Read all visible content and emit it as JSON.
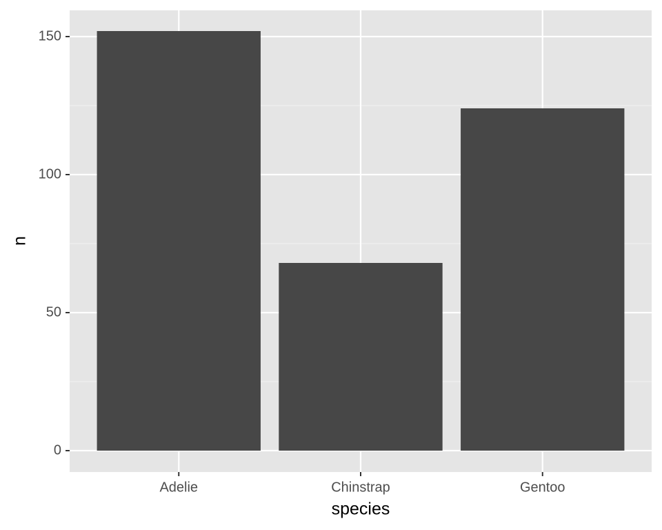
{
  "chart_data": {
    "type": "bar",
    "x_label": "species",
    "y_label": "n",
    "categories": [
      "Adelie",
      "Chinstrap",
      "Gentoo"
    ],
    "values": [
      152,
      68,
      124
    ],
    "color": "#474747",
    "ylim": [
      -7.75,
      159.5
    ],
    "yticks": [
      0,
      50,
      100,
      150
    ],
    "y_minor_ticks": [
      25,
      75,
      125
    ],
    "grid": true
  }
}
